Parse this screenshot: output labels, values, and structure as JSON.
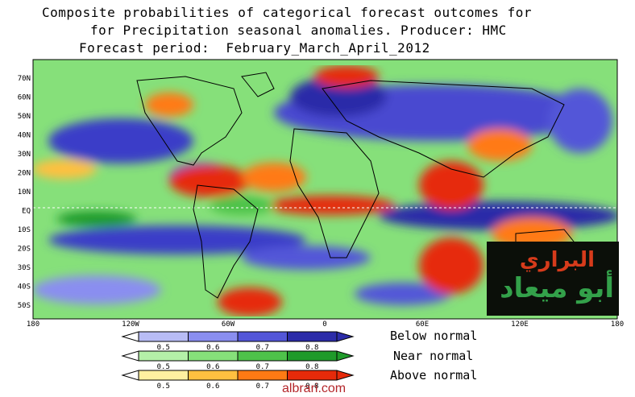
{
  "title": {
    "line1": "Composite probabilities of categorical forecast outcomes for",
    "line2": "for Precipitation seasonal anomalies. Producer: HMC",
    "line3": "Forecast period:  February_March_April_2012"
  },
  "map": {
    "lat_labels": [
      "70N",
      "60N",
      "50N",
      "40N",
      "30N",
      "20N",
      "10N",
      "EQ",
      "10S",
      "20S",
      "30S",
      "40S",
      "50S"
    ],
    "lon_labels": [
      "180",
      "120W",
      "60W",
      "0",
      "60E",
      "120E",
      "180"
    ]
  },
  "legend": {
    "ticks": [
      "0.5",
      "0.6",
      "0.7",
      "0.8"
    ],
    "categories": [
      {
        "label": "Below normal",
        "colors": [
          "#b8bcf5",
          "#8a8ef0",
          "#5356d8",
          "#2b2ba8"
        ]
      },
      {
        "label": "Near normal",
        "colors": [
          "#b4f0a8",
          "#86e07a",
          "#4ec24a",
          "#1f9a2a"
        ]
      },
      {
        "label": "Above normal",
        "colors": [
          "#fff0a0",
          "#ffc040",
          "#ff7a14",
          "#e62a0a"
        ]
      }
    ]
  },
  "badge": {
    "line1": "البراري",
    "line2": "أبو ميعاد"
  },
  "watermark": "albrari.com"
}
